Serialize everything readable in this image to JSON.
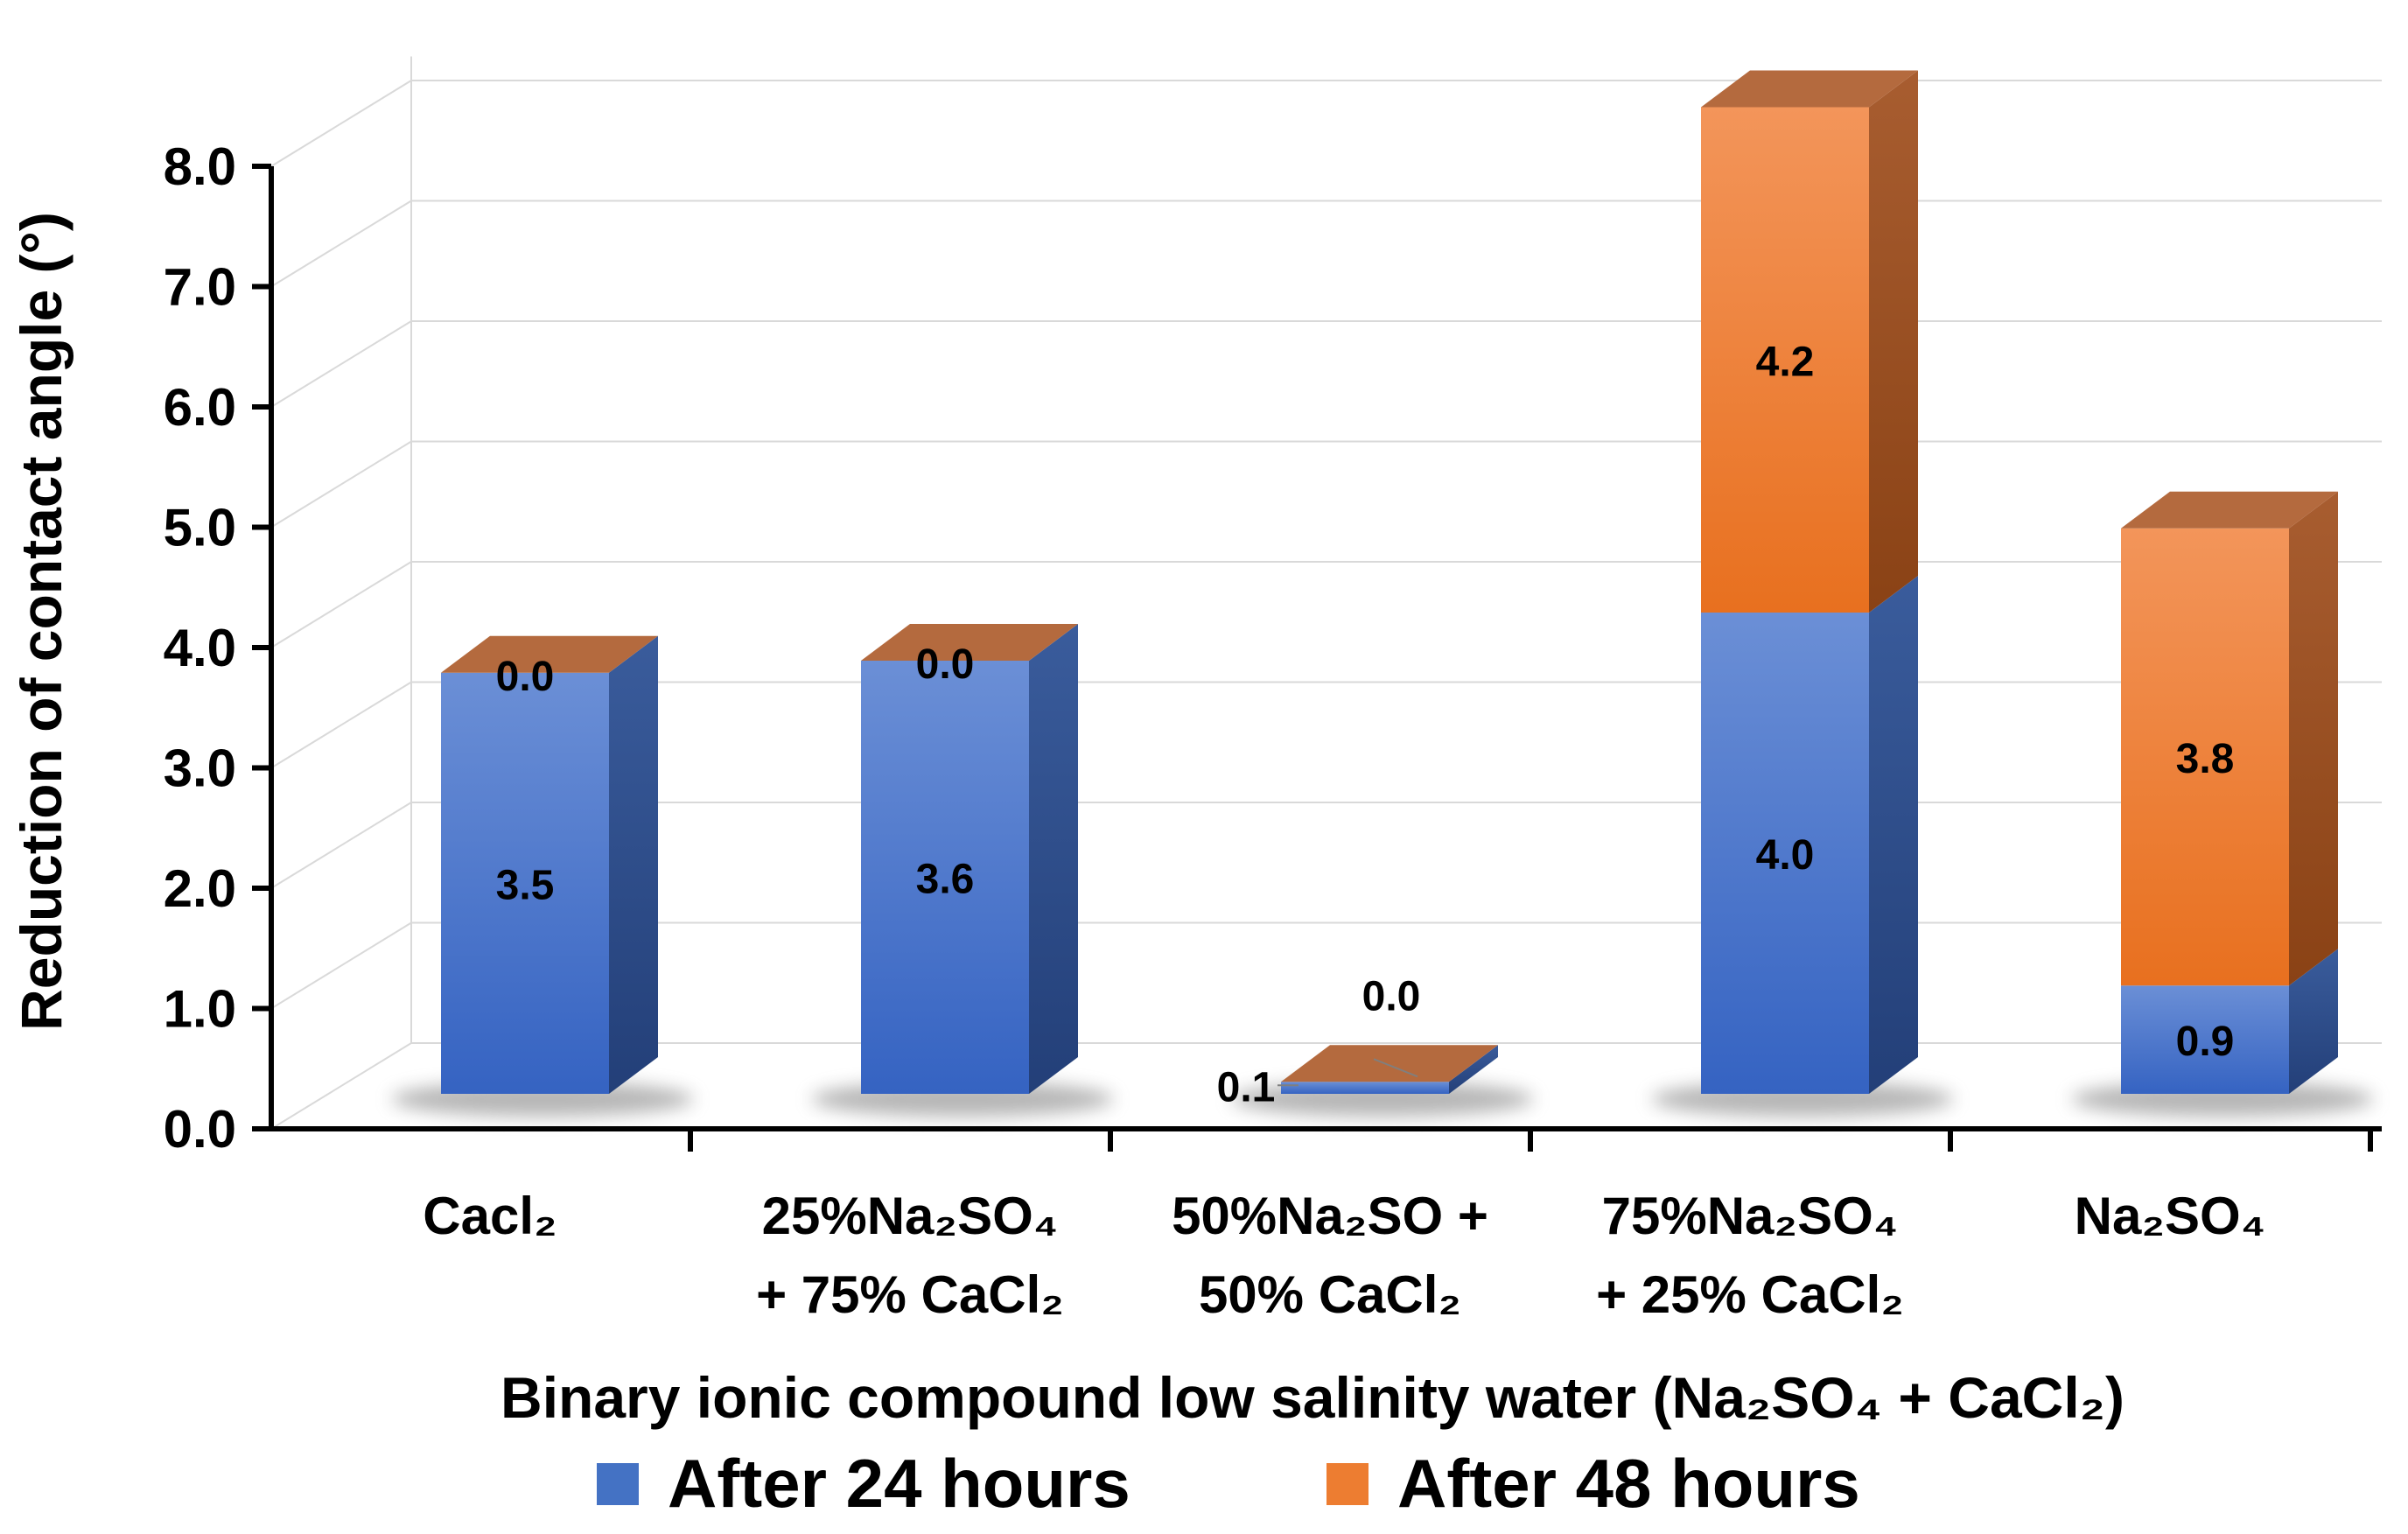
{
  "chart_data": {
    "type": "bar",
    "stacked": true,
    "three_d": true,
    "categories": [
      [
        "Cacl₂"
      ],
      [
        "25%Na₂SO₄",
        "+ 75% CaCl₂"
      ],
      [
        "50%Na₂SO +",
        "50% CaCl₂"
      ],
      [
        "75%Na₂SO₄",
        "+ 25% CaCl₂"
      ],
      [
        "Na₂SO₄"
      ]
    ],
    "series": [
      {
        "name": "After 24 hours",
        "values": [
          3.5,
          3.6,
          0.1,
          4.0,
          0.9
        ],
        "labels": [
          "3.5",
          "3.6",
          "0.1",
          "4.0",
          "0.9"
        ]
      },
      {
        "name": "After 48 hours",
        "values": [
          0.0,
          0.0,
          0.0,
          4.2,
          3.8
        ],
        "labels": [
          "0.0",
          "0.0",
          "0.0",
          "4.2",
          "3.8"
        ]
      }
    ],
    "ylabel": "Reduction of contact angle (°)",
    "xlabel": "Binary ionic compound low salinity water (Na₂SO₄ + CaCl₂)",
    "ylim": [
      0,
      8
    ],
    "yticks": [
      "0.0",
      "1.0",
      "2.0",
      "3.0",
      "4.0",
      "5.0",
      "6.0",
      "7.0",
      "8.0"
    ],
    "grid": true,
    "legend_position": "bottom",
    "colors": {
      "blue": "#4472c4",
      "blue_top": "#2e5aa6",
      "blue_side": "#2a4a86",
      "orange": "#ed7d31",
      "orange_top": "#b46a3e",
      "orange_side": "#9b4e1e"
    }
  }
}
